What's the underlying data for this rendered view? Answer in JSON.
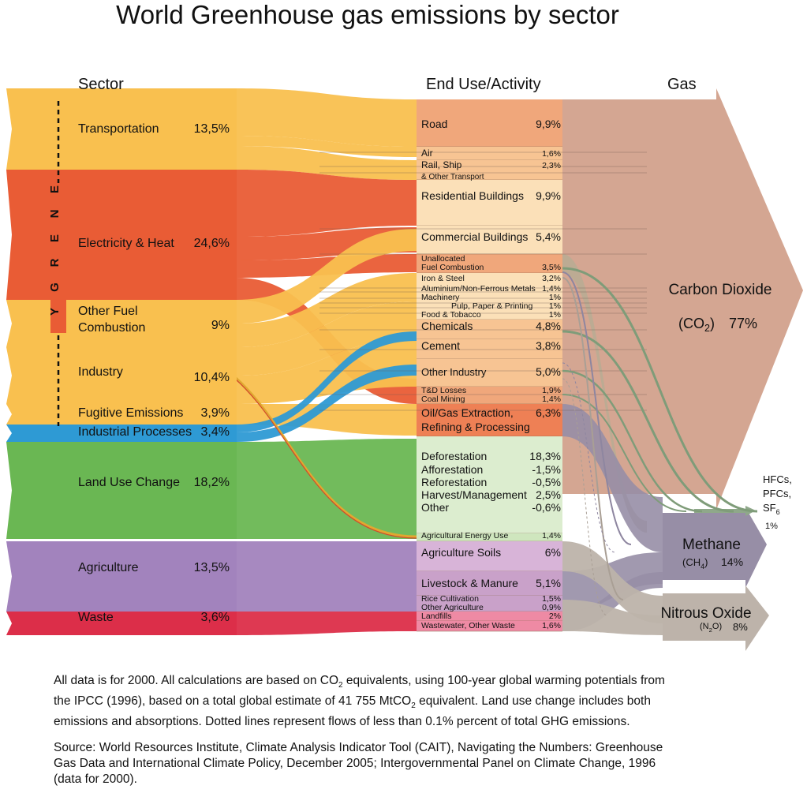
{
  "title": "World Greenhouse gas emissions by sector",
  "headers": {
    "sector": "Sector",
    "end_use": "End Use/Activity",
    "gas": "Gas"
  },
  "energy_label": "E N E R G Y",
  "sectors": [
    {
      "key": "transportation",
      "lines": [
        "Transportation"
      ],
      "value": "13,5%",
      "color": "#f9c04f"
    },
    {
      "key": "electricity-heat",
      "lines": [
        "Electricity & Heat"
      ],
      "value": "24,6%",
      "color": "#e95c35"
    },
    {
      "key": "other-fuel-combustion",
      "lines": [
        "Other Fuel",
        "Combustion"
      ],
      "value": "9%",
      "color": "#f9c04f"
    },
    {
      "key": "industry",
      "lines": [
        "Industry"
      ],
      "value": "10,4%",
      "color": "#f9c04f"
    },
    {
      "key": "fugitive-emissions",
      "lines": [
        "Fugitive Emissions"
      ],
      "value": "3,9%",
      "color": "#f9c04f"
    },
    {
      "key": "industrial-processes",
      "lines": [
        "Industrial Processes"
      ],
      "value": "3,4%",
      "color": "#2e9ad4"
    },
    {
      "key": "land-use-change",
      "lines": [
        "Land Use Change"
      ],
      "value": "18,2%",
      "color": "#6ab753"
    },
    {
      "key": "agriculture",
      "lines": [
        "Agriculture"
      ],
      "value": "13,5%",
      "color": "#a283bd"
    },
    {
      "key": "waste",
      "lines": [
        "Waste"
      ],
      "value": "3,6%",
      "color": "#dc2e49"
    }
  ],
  "end_uses": [
    {
      "key": "road",
      "label": "Road",
      "value": "9,9%"
    },
    {
      "key": "air",
      "label": "Air",
      "value": "1,6%"
    },
    {
      "key": "rail-ship",
      "label": "Rail, Ship",
      "value": "2,3%"
    },
    {
      "key": "other-transport",
      "label": "& Other Transport",
      "value": ""
    },
    {
      "key": "residential-buildings",
      "label": "Residential Buildings",
      "value": "9,9%"
    },
    {
      "key": "commercial-buildings",
      "label": "Commercial Buildings",
      "value": "5,4%"
    },
    {
      "key": "unallocated",
      "label": "Unallocated",
      "value": ""
    },
    {
      "key": "fuel-combustion",
      "label": "Fuel Combustion",
      "value": "3,5%"
    },
    {
      "key": "iron-steel",
      "label": "Iron & Steel",
      "value": "3,2%"
    },
    {
      "key": "aluminium",
      "label": "Aluminium/Non-Ferrous Metals",
      "value": "1,4%"
    },
    {
      "key": "machinery",
      "label": "Machinery",
      "value": "1%"
    },
    {
      "key": "pulp-paper",
      "label": "Pulp, Paper & Printing",
      "value": "1%"
    },
    {
      "key": "food-tobacco",
      "label": "Food & Tobacco",
      "value": "1%"
    },
    {
      "key": "chemicals",
      "label": "Chemicals",
      "value": "4,8%"
    },
    {
      "key": "cement",
      "label": "Cement",
      "value": "3,8%"
    },
    {
      "key": "other-industry",
      "label": "Other Industry",
      "value": "5,0%"
    },
    {
      "key": "td-losses",
      "label": "T&D Losses",
      "value": "1,9%"
    },
    {
      "key": "coal-mining",
      "label": "Coal Mining",
      "value": "1,4%"
    },
    {
      "key": "oil-gas-1",
      "label": "Oil/Gas Extraction,",
      "value": "6,3%"
    },
    {
      "key": "oil-gas-2",
      "label": "Refining & Processing",
      "value": ""
    },
    {
      "key": "deforestation",
      "label": "Deforestation",
      "value": "18,3%"
    },
    {
      "key": "afforestation",
      "label": "Afforestation",
      "value": "-1,5%"
    },
    {
      "key": "reforestation",
      "label": "Reforestation",
      "value": "-0,5%"
    },
    {
      "key": "harvest",
      "label": "Harvest/Management",
      "value": "2,5%"
    },
    {
      "key": "other-luc",
      "label": "Other",
      "value": "-0,6%"
    },
    {
      "key": "agri-energy",
      "label": "Agricultural Energy Use",
      "value": "1,4%"
    },
    {
      "key": "agri-soils",
      "label": "Agriculture Soils",
      "value": "6%"
    },
    {
      "key": "livestock",
      "label": "Livestock & Manure",
      "value": "5,1%"
    },
    {
      "key": "rice",
      "label": "Rice Cultivation",
      "value": "1,5%"
    },
    {
      "key": "other-agri",
      "label": "Other Agriculture",
      "value": "0,9%"
    },
    {
      "key": "landfills",
      "label": "Landfills",
      "value": "2%"
    },
    {
      "key": "wastewater",
      "label": "Wastewater, Other Waste",
      "value": "1,6%"
    }
  ],
  "gases": {
    "co2": {
      "name": "Carbon Dioxide",
      "formula": "CO",
      "sub": "2",
      "value": "77%",
      "color": "#d4a692"
    },
    "ch4": {
      "name": "Methane",
      "formula": "CH",
      "sub": "4",
      "value": "14%",
      "color": "#978ea6"
    },
    "n2o": {
      "name": "Nitrous Oxide",
      "formula": "N",
      "sub": "2",
      "formula_tail": "O",
      "value": "8%",
      "color": "#bdb3aa"
    },
    "fgas": {
      "lines": [
        "HFCs,",
        "PFCs,",
        "SF"
      ],
      "sub": "6",
      "value": "1%",
      "color": "#8fa88a"
    }
  },
  "footnote": {
    "p1": {
      "l1a": "All data is for 2000. All calculations are based on CO",
      "l1sub": "2",
      "l1b": " equivalents, using 100-year global warming potentials from",
      "l2a": "the IPCC (1996), based on a total global estimate of 41 755 MtCO",
      "l2sub": "2",
      "l2b": " equivalent. Land use change includes both",
      "l3": "emissions and absorptions. Dotted lines represent flows of less than 0.1% percent of total GHG emissions."
    },
    "p2": {
      "l1": "Source: World Resources Institute, Climate Analysis Indicator Tool (CAIT), Navigating the Numbers: Greenhouse",
      "l2": "Gas Data and International Climate Policy, December 2005; Intergovernmental Panel on Climate Change, 1996",
      "l3": "(data for 2000)."
    }
  }
}
